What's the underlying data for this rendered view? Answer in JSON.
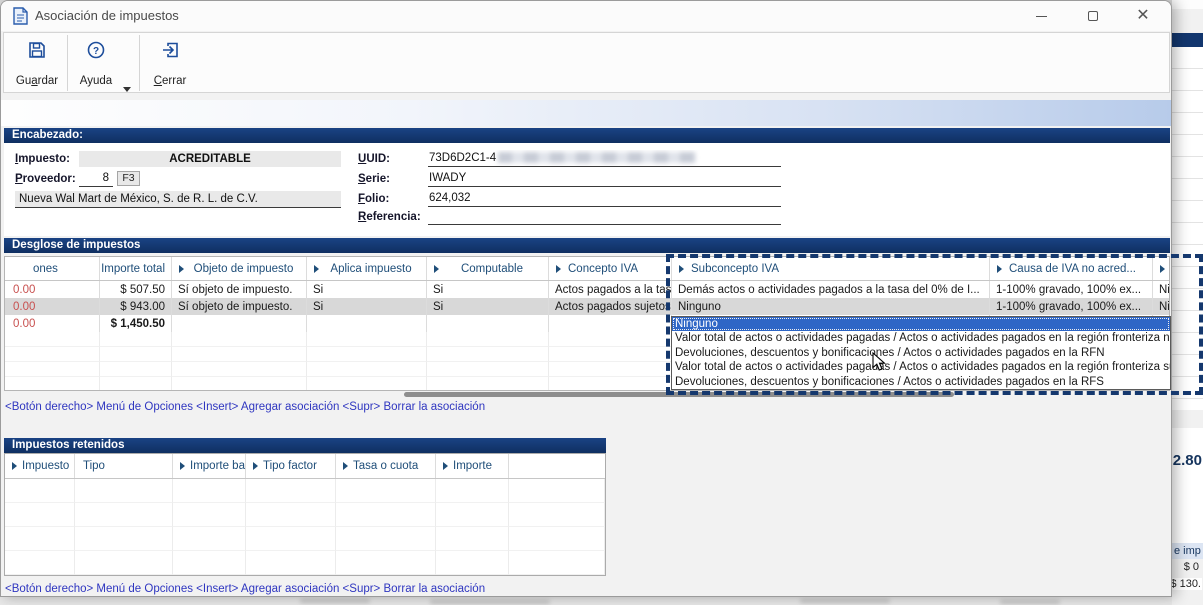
{
  "window": {
    "title": "Asociación de impuestos"
  },
  "toolbar": {
    "guardar_label": "Guardar",
    "ayuda_label": "Ayuda",
    "cerrar_label": "Cerrar"
  },
  "encabezado": {
    "section_title": "Encabezado:",
    "impuesto_label": "Impuesto:",
    "impuesto_value": "ACREDITABLE",
    "proveedor_label": "Proveedor:",
    "proveedor_code": "8",
    "proveedor_lookup": "F3",
    "proveedor_name": "Nueva Wal Mart de México, S. de R. L. de C.V.",
    "uuid_label": "UUID:",
    "uuid_visible": "73D6D2C1-4",
    "serie_label": "Serie:",
    "serie_value": "IWADY",
    "folio_label": "Folio:",
    "folio_value": "624,032",
    "referencia_label": "Referencia:",
    "referencia_value": ""
  },
  "desglose": {
    "section_title": "Desglose de impuestos",
    "columns": [
      "ones",
      "Importe total",
      "Objeto de impuesto",
      "Aplica impuesto",
      "Computable",
      "Concepto IVA",
      "Subconcepto IVA",
      "Causa de IVA no acred...",
      ""
    ],
    "rows": [
      [
        "0.00",
        "$ 507.50",
        "Sí objeto de impuesto.",
        "Si",
        "Si",
        "Actos pagados a la tasa d...",
        "Demás actos o actividades pagados a la tasa del 0% de I...",
        "1-100% gravado, 100% ex...",
        "Nin"
      ],
      [
        "0.00",
        "$ 943.00",
        "Sí objeto de impuesto.",
        "Si",
        "Si",
        "Actos pagados sujetos al ...",
        "Ninguno",
        "1-100% gravado, 100% ex...",
        "Nin"
      ]
    ],
    "totals": [
      "0.00",
      "$ 1,450.50"
    ],
    "dropdown": {
      "selected_index": 0,
      "items": [
        "Ninguno",
        "Valor total de actos o actividades pagadas / Actos o actividades pagados en la región fronteriza norte",
        "Devoluciones, descuentos y bonificaciones / Actos o actividades pagados en la RFN",
        "Valor total de actos o actividades pagadas / Actos o actividades pagados en la región fronteriza sur",
        "Devoluciones, descuentos y bonificaciones / Actos o actividades pagados en la RFS"
      ]
    }
  },
  "retenidos": {
    "section_title": "Impuestos retenidos",
    "columns": [
      "Impuesto",
      "Tipo",
      "Importe base",
      "Tipo factor",
      "Tasa o cuota",
      "Importe"
    ]
  },
  "hints": {
    "options_hint": "<Botón derecho> Menú de Opciones  <Insert> Agregar asociación  <Supr> Borrar la asociación"
  },
  "background_window": {
    "partial_amount": "2.80",
    "partial_header": "e imp",
    "partial_value_1": "$ 0",
    "partial_value_2": "$ 130."
  },
  "colors": {
    "section_bar": "#12366E",
    "grid_header_text": "#1F4E79",
    "selection_blue": "#2E66C6",
    "negative_red": "#C8504F",
    "hint_blue": "#2F36C0"
  }
}
